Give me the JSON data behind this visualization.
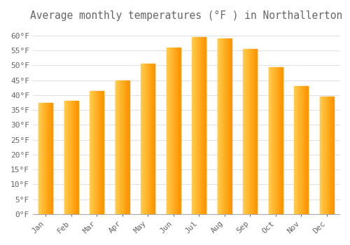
{
  "title": "Average monthly temperatures (°F ) in Northallerton",
  "months": [
    "Jan",
    "Feb",
    "Mar",
    "Apr",
    "May",
    "Jun",
    "Jul",
    "Aug",
    "Sep",
    "Oct",
    "Nov",
    "Dec"
  ],
  "values": [
    37.5,
    38.0,
    41.5,
    45.0,
    50.5,
    56.0,
    59.5,
    59.0,
    55.5,
    49.5,
    43.0,
    39.5
  ],
  "bar_color_left": "#FFD050",
  "bar_color_right": "#FF9500",
  "background_color": "#FFFFFF",
  "grid_color": "#E0E0E8",
  "text_color": "#666666",
  "ylim": [
    0,
    63
  ],
  "yticks": [
    0,
    5,
    10,
    15,
    20,
    25,
    30,
    35,
    40,
    45,
    50,
    55,
    60
  ],
  "title_fontsize": 10.5,
  "tick_fontsize": 8,
  "bar_width": 0.55
}
